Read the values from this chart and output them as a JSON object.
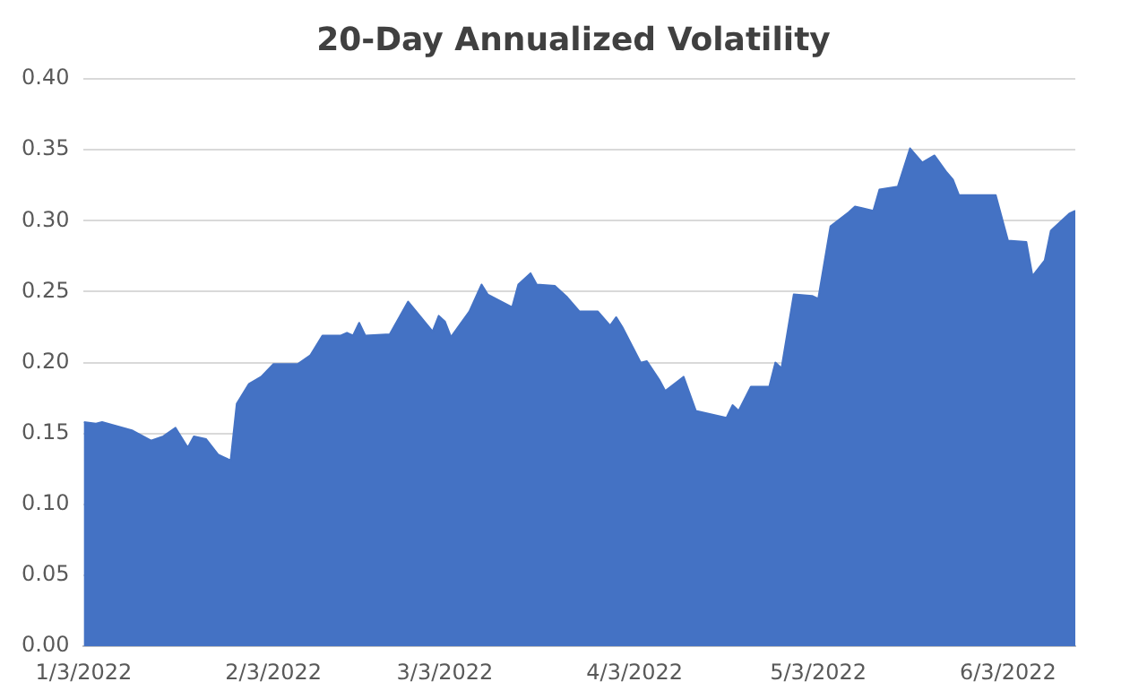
{
  "chart_data": {
    "type": "area",
    "title": "20-Day Annualized Volatility",
    "x": [
      "2022-01-03",
      "2022-01-05",
      "2022-01-06",
      "2022-01-11",
      "2022-01-14",
      "2022-01-16",
      "2022-01-18",
      "2022-01-20",
      "2022-01-21",
      "2022-01-23",
      "2022-01-25",
      "2022-01-27",
      "2022-01-28",
      "2022-01-30",
      "2022-02-01",
      "2022-02-03",
      "2022-02-07",
      "2022-02-09",
      "2022-02-11",
      "2022-02-14",
      "2022-02-15",
      "2022-02-16",
      "2022-02-17",
      "2022-02-18",
      "2022-02-22",
      "2022-02-25",
      "2022-03-01",
      "2022-03-02",
      "2022-03-03",
      "2022-03-04",
      "2022-03-07",
      "2022-03-09",
      "2022-03-10",
      "2022-03-14",
      "2022-03-15",
      "2022-03-17",
      "2022-03-18",
      "2022-03-21",
      "2022-03-23",
      "2022-03-25",
      "2022-03-28",
      "2022-03-30",
      "2022-03-31",
      "2022-04-01",
      "2022-04-04",
      "2022-04-05",
      "2022-04-07",
      "2022-04-08",
      "2022-04-11",
      "2022-04-13",
      "2022-04-18",
      "2022-04-19",
      "2022-04-20",
      "2022-04-22",
      "2022-04-25",
      "2022-04-26",
      "2022-04-27",
      "2022-04-29",
      "2022-05-02",
      "2022-05-03",
      "2022-05-05",
      "2022-05-08",
      "2022-05-09",
      "2022-05-10",
      "2022-05-12",
      "2022-05-13",
      "2022-05-16",
      "2022-05-18",
      "2022-05-20",
      "2022-05-22",
      "2022-05-24",
      "2022-05-25",
      "2022-05-26",
      "2022-06-01",
      "2022-06-03",
      "2022-06-06",
      "2022-06-07",
      "2022-06-09",
      "2022-06-10",
      "2022-06-13",
      "2022-06-14"
    ],
    "series": [
      {
        "color": "#4472c4",
        "values": [
          0.158,
          0.157,
          0.158,
          0.152,
          0.145,
          0.148,
          0.154,
          0.14,
          0.148,
          0.146,
          0.135,
          0.131,
          0.171,
          0.185,
          0.19,
          0.199,
          0.199,
          0.205,
          0.219,
          0.219,
          0.221,
          0.219,
          0.228,
          0.219,
          0.22,
          0.243,
          0.222,
          0.233,
          0.229,
          0.218,
          0.236,
          0.255,
          0.248,
          0.239,
          0.255,
          0.263,
          0.255,
          0.254,
          0.246,
          0.236,
          0.236,
          0.226,
          0.232,
          0.225,
          0.2,
          0.201,
          0.188,
          0.18,
          0.19,
          0.166,
          0.161,
          0.17,
          0.166,
          0.183,
          0.183,
          0.2,
          0.196,
          0.248,
          0.247,
          0.245,
          0.296,
          0.306,
          0.31,
          0.309,
          0.307,
          0.322,
          0.324,
          0.351,
          0.341,
          0.346,
          0.334,
          0.329,
          0.318,
          0.318,
          0.286,
          0.285,
          0.261,
          0.272,
          0.293,
          0.305,
          0.307
        ]
      }
    ],
    "xlim": [
      "2022-01-03",
      "2022-06-14"
    ],
    "xticks": [
      {
        "value": "2022-01-03",
        "label": "1/3/2022"
      },
      {
        "value": "2022-02-03",
        "label": "2/3/2022"
      },
      {
        "value": "2022-03-03",
        "label": "3/3/2022"
      },
      {
        "value": "2022-04-03",
        "label": "4/3/2022"
      },
      {
        "value": "2022-05-03",
        "label": "5/3/2022"
      },
      {
        "value": "2022-06-03",
        "label": "6/3/2022"
      }
    ],
    "ylim": [
      0,
      0.4
    ],
    "yticks": [
      {
        "value": 0,
        "label": "0.00"
      },
      {
        "value": 0.05,
        "label": "0.05"
      },
      {
        "value": 0.1,
        "label": "0.10"
      },
      {
        "value": 0.15,
        "label": "0.15"
      },
      {
        "value": 0.2,
        "label": "0.20"
      },
      {
        "value": 0.25,
        "label": "0.25"
      },
      {
        "value": 0.3,
        "label": "0.30"
      },
      {
        "value": 0.35,
        "label": "0.35"
      },
      {
        "value": 0.4,
        "label": "0.40"
      }
    ],
    "grid": "y",
    "legend": false,
    "marker": "none"
  }
}
